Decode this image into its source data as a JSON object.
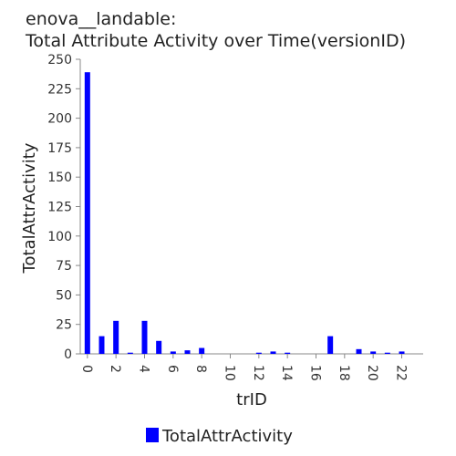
{
  "chart_data": {
    "type": "bar",
    "title_line1": "enova__landable:",
    "title_line2": "Total Attribute Activity over Time(versionID)",
    "xlabel": "trID",
    "ylabel": "TotalAttrActivity",
    "ylim": [
      0,
      250
    ],
    "yticks": [
      0,
      25,
      50,
      75,
      100,
      125,
      150,
      175,
      200,
      225,
      250
    ],
    "xticks": [
      0,
      2,
      4,
      6,
      8,
      10,
      12,
      14,
      16,
      18,
      20,
      22
    ],
    "xlim": [
      0,
      23
    ],
    "series": [
      {
        "name": "TotalAttrActivity",
        "color": "#0000ff",
        "x": [
          0,
          1,
          2,
          3,
          4,
          5,
          6,
          7,
          8,
          9,
          10,
          11,
          12,
          13,
          14,
          15,
          16,
          17,
          18,
          19,
          20,
          21,
          22
        ],
        "values": [
          239,
          15,
          28,
          1,
          28,
          11,
          2,
          3,
          5,
          0,
          0,
          0,
          1,
          2,
          1,
          0,
          0,
          15,
          0,
          4,
          2,
          1,
          2
        ]
      }
    ],
    "legend_position": "bottom-center",
    "grid": false
  }
}
